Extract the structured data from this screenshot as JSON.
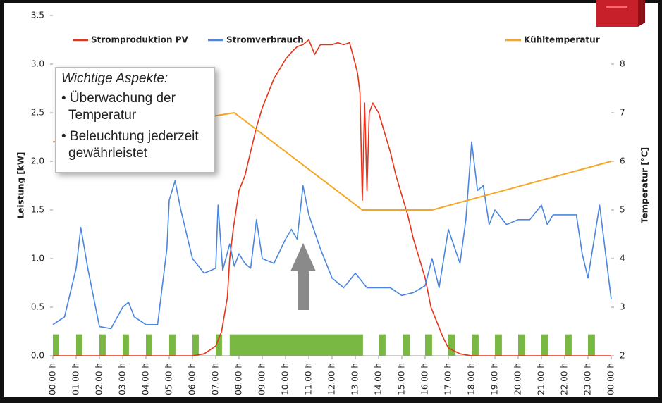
{
  "chart_data": {
    "type": "line",
    "ylabel": "Leistung [kW]",
    "y2label": "Temperatur [°C]",
    "ylim": [
      0,
      3.5
    ],
    "yticks": [
      {
        "value": 0,
        "label": "0.0"
      },
      0.5,
      {
        "value": 1,
        "label": "1.0"
      },
      1.5,
      {
        "value": 2,
        "label": "2.0"
      },
      2.5,
      {
        "value": 3,
        "label": "3.0"
      },
      3.5
    ],
    "y2lim": [
      2,
      9
    ],
    "y2ticks": [
      2,
      3,
      4,
      5,
      6,
      7,
      8
    ],
    "xlim": [
      0,
      24
    ],
    "xticks": [
      {
        "value": 0,
        "label": "00.00 h"
      },
      {
        "value": 1,
        "label": "01.00 h"
      },
      {
        "value": 2,
        "label": "02.00 h"
      },
      {
        "value": 3,
        "label": "03.00 h"
      },
      {
        "value": 4,
        "label": "04.00 h"
      },
      {
        "value": 5,
        "label": "05.00 h"
      },
      {
        "value": 6,
        "label": "06.00 h"
      },
      {
        "value": 7,
        "label": "07.00 h"
      },
      {
        "value": 8,
        "label": "08.00 h"
      },
      {
        "value": 9,
        "label": "09.00 h"
      },
      {
        "value": 10,
        "label": "10.00 h"
      },
      {
        "value": 11,
        "label": "11.00 h"
      },
      {
        "value": 12,
        "label": "12.00 h"
      },
      {
        "value": 13,
        "label": "13.00 h"
      },
      {
        "value": 14,
        "label": "14.00 h"
      },
      {
        "value": 15,
        "label": "15.00 h"
      },
      {
        "value": 16,
        "label": "16.00 h"
      },
      {
        "value": 17,
        "label": "17.00 h"
      },
      {
        "value": 18,
        "label": "18.00 h"
      },
      {
        "value": 19,
        "label": "19.00 h"
      },
      {
        "value": 20,
        "label": "20.00 h"
      },
      {
        "value": 21,
        "label": "21.00 h"
      },
      {
        "value": 22,
        "label": "22.00 h"
      },
      {
        "value": 23,
        "label": "23.00 h"
      },
      {
        "value": 24,
        "label": "00.00 h"
      }
    ],
    "grid": false,
    "series": [
      {
        "name": "Stromproduktion PV",
        "color": "#e8331a",
        "x": [
          0,
          6,
          6.5,
          7,
          7.25,
          7.5,
          7.6,
          7.75,
          8,
          8.25,
          8.5,
          8.75,
          9,
          9.25,
          9.5,
          9.75,
          10,
          10.25,
          10.5,
          10.75,
          11,
          11.25,
          11.5,
          11.75,
          12,
          12.25,
          12.5,
          12.75,
          13,
          13.1,
          13.2,
          13.3,
          13.4,
          13.5,
          13.6,
          13.75,
          14,
          14.25,
          14.5,
          14.75,
          15,
          15.25,
          15.5,
          15.75,
          16,
          16.25,
          16.5,
          16.75,
          17,
          17.5,
          18,
          24
        ],
        "values": [
          0,
          0,
          0.02,
          0.1,
          0.25,
          0.6,
          1.0,
          1.3,
          1.7,
          1.85,
          2.1,
          2.35,
          2.55,
          2.7,
          2.85,
          2.95,
          3.05,
          3.12,
          3.18,
          3.2,
          3.25,
          3.1,
          3.2,
          3.2,
          3.2,
          3.22,
          3.2,
          3.22,
          3.0,
          2.9,
          2.7,
          1.6,
          2.6,
          1.7,
          2.5,
          2.6,
          2.5,
          2.3,
          2.1,
          1.85,
          1.65,
          1.45,
          1.2,
          1.0,
          0.8,
          0.5,
          0.35,
          0.2,
          0.08,
          0.02,
          0,
          0
        ]
      },
      {
        "name": "Stromverbrauch",
        "color": "#4a86e0",
        "x": [
          0,
          0.5,
          1,
          1.2,
          1.5,
          2,
          2.5,
          3,
          3.25,
          3.5,
          4,
          4.5,
          4.9,
          5,
          5.25,
          5.5,
          6,
          6.5,
          7,
          7.1,
          7.3,
          7.6,
          7.8,
          8,
          8.25,
          8.5,
          8.75,
          9,
          9.5,
          10,
          10.25,
          10.5,
          10.75,
          11,
          11.5,
          12,
          12.5,
          13,
          13.5,
          14,
          14.5,
          15,
          15.5,
          16,
          16.3,
          16.6,
          17,
          17.5,
          17.75,
          18,
          18.25,
          18.5,
          18.75,
          19,
          19.5,
          20,
          20.5,
          21,
          21.25,
          21.5,
          22.5,
          22.75,
          23,
          23.5,
          24
        ],
        "values": [
          0.32,
          0.4,
          0.9,
          1.32,
          0.9,
          0.3,
          0.28,
          0.5,
          0.55,
          0.4,
          0.32,
          0.32,
          1.1,
          1.6,
          1.8,
          1.5,
          1.0,
          0.85,
          0.9,
          1.55,
          0.88,
          1.15,
          0.92,
          1.05,
          0.95,
          0.9,
          1.4,
          1.0,
          0.95,
          1.2,
          1.3,
          1.2,
          1.75,
          1.45,
          1.1,
          0.8,
          0.7,
          0.85,
          0.7,
          0.7,
          0.7,
          0.62,
          0.65,
          0.72,
          1.0,
          0.7,
          1.3,
          0.95,
          1.4,
          2.2,
          1.7,
          1.75,
          1.35,
          1.5,
          1.35,
          1.4,
          1.4,
          1.55,
          1.35,
          1.45,
          1.45,
          1.05,
          0.8,
          1.55,
          0.58
        ]
      },
      {
        "name": "Kühltemperatur",
        "color": "#f5a623",
        "axis": "y2",
        "x": [
          0,
          7.8,
          13.3,
          16.3,
          24
        ],
        "values": [
          6.4,
          7.0,
          5.0,
          5.0,
          6.0
        ]
      }
    ],
    "lighting": {
      "color": "#78b843",
      "height": 0.22,
      "intervals": [
        [
          0,
          0.27
        ],
        [
          1,
          1.27
        ],
        [
          2,
          2.27
        ],
        [
          3,
          3.27
        ],
        [
          4,
          4.27
        ],
        [
          5,
          5.27
        ],
        [
          6,
          6.27
        ],
        [
          7,
          7.27
        ],
        [
          7.6,
          13.33
        ],
        [
          14,
          14.3
        ],
        [
          15.05,
          15.35
        ],
        [
          16,
          16.3
        ],
        [
          17,
          17.3
        ],
        [
          18,
          18.3
        ],
        [
          19,
          19.3
        ],
        [
          20,
          20.3
        ],
        [
          21,
          21.3
        ],
        [
          22,
          22.3
        ],
        [
          23,
          23.3
        ]
      ]
    },
    "annotation": {
      "heading": "Wichtige Aspekte:",
      "bullets": [
        "• Überwachung der Temperatur",
        "• Beleuchtung jederzeit gewährleistet"
      ]
    }
  }
}
